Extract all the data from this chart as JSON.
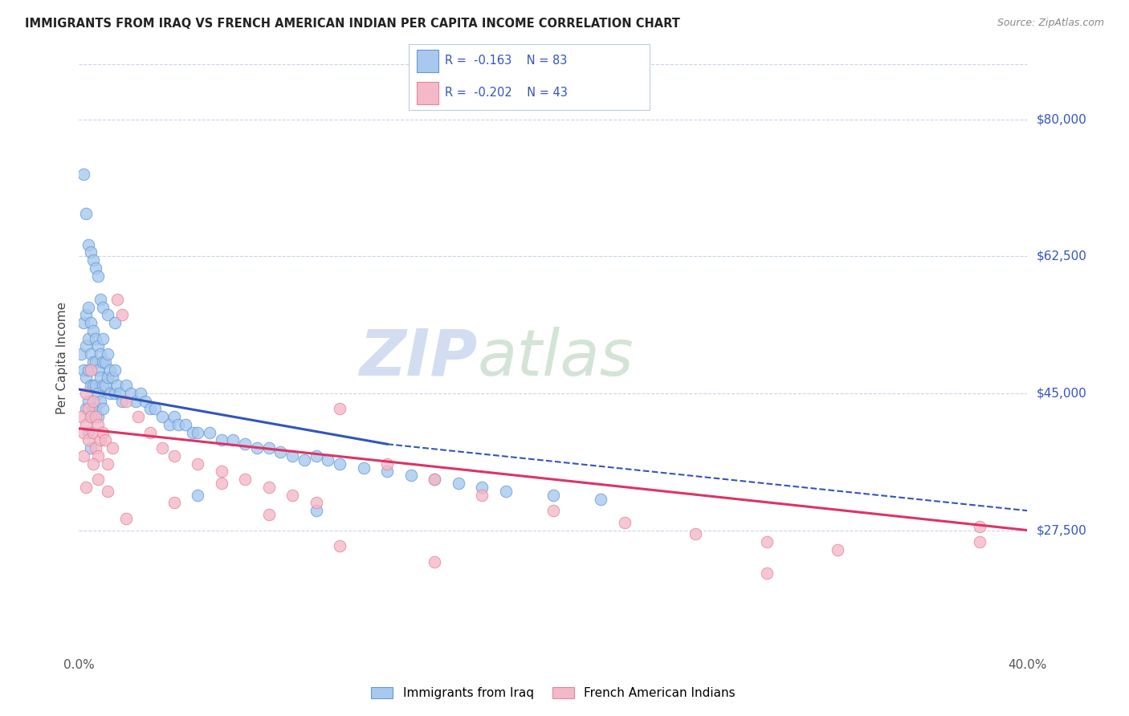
{
  "title": "IMMIGRANTS FROM IRAQ VS FRENCH AMERICAN INDIAN PER CAPITA INCOME CORRELATION CHART",
  "source": "Source: ZipAtlas.com",
  "ylabel": "Per Capita Income",
  "yticks": [
    27500,
    45000,
    62500,
    80000
  ],
  "ytick_labels": [
    "$27,500",
    "$45,000",
    "$62,500",
    "$80,000"
  ],
  "xlim": [
    0.0,
    0.4
  ],
  "ylim": [
    12000,
    87000
  ],
  "watermark": "ZIPatlas",
  "legend_bottom": [
    "Immigrants from Iraq",
    "French American Indians"
  ],
  "blue_scatter_x": [
    0.001,
    0.002,
    0.002,
    0.003,
    0.003,
    0.003,
    0.003,
    0.004,
    0.004,
    0.004,
    0.004,
    0.004,
    0.005,
    0.005,
    0.005,
    0.005,
    0.005,
    0.006,
    0.006,
    0.006,
    0.006,
    0.007,
    0.007,
    0.007,
    0.007,
    0.008,
    0.008,
    0.008,
    0.008,
    0.009,
    0.009,
    0.009,
    0.01,
    0.01,
    0.01,
    0.01,
    0.011,
    0.011,
    0.012,
    0.012,
    0.013,
    0.013,
    0.014,
    0.015,
    0.015,
    0.016,
    0.017,
    0.018,
    0.02,
    0.022,
    0.024,
    0.026,
    0.028,
    0.03,
    0.032,
    0.035,
    0.038,
    0.04,
    0.042,
    0.045,
    0.048,
    0.05,
    0.055,
    0.06,
    0.065,
    0.07,
    0.075,
    0.08,
    0.085,
    0.09,
    0.095,
    0.1,
    0.105,
    0.11,
    0.12,
    0.13,
    0.14,
    0.15,
    0.16,
    0.17,
    0.18,
    0.2,
    0.22
  ],
  "blue_scatter_y": [
    50000,
    54000,
    48000,
    55000,
    51000,
    47000,
    43000,
    56000,
    52000,
    48000,
    44000,
    40000,
    54000,
    50000,
    46000,
    42000,
    38000,
    53000,
    49000,
    46000,
    43000,
    52000,
    49000,
    46000,
    43000,
    51000,
    48000,
    45000,
    42000,
    50000,
    47000,
    44000,
    52000,
    49000,
    46000,
    43000,
    49000,
    46000,
    50000,
    47000,
    48000,
    45000,
    47000,
    48000,
    45000,
    46000,
    45000,
    44000,
    46000,
    45000,
    44000,
    45000,
    44000,
    43000,
    43000,
    42000,
    41000,
    42000,
    41000,
    41000,
    40000,
    40000,
    40000,
    39000,
    39000,
    38500,
    38000,
    38000,
    37500,
    37000,
    36500,
    37000,
    36500,
    36000,
    35500,
    35000,
    34500,
    34000,
    33500,
    33000,
    32500,
    32000,
    31500
  ],
  "blue_scatter_special": [
    0.002,
    0.003,
    0.004,
    0.005,
    0.006,
    0.007,
    0.008,
    0.009,
    0.01,
    0.012,
    0.015,
    0.05,
    0.1
  ],
  "blue_scatter_special_y": [
    73000,
    68000,
    64000,
    63000,
    62000,
    61000,
    60000,
    57000,
    56000,
    55000,
    54000,
    32000,
    30000
  ],
  "pink_scatter_x": [
    0.001,
    0.002,
    0.002,
    0.003,
    0.003,
    0.004,
    0.004,
    0.005,
    0.005,
    0.006,
    0.006,
    0.007,
    0.007,
    0.008,
    0.008,
    0.009,
    0.01,
    0.011,
    0.012,
    0.014,
    0.016,
    0.018,
    0.02,
    0.025,
    0.03,
    0.035,
    0.04,
    0.05,
    0.06,
    0.07,
    0.08,
    0.09,
    0.1,
    0.11,
    0.13,
    0.15,
    0.17,
    0.2,
    0.23,
    0.26,
    0.29,
    0.32,
    0.38
  ],
  "pink_scatter_y": [
    42000,
    40000,
    37000,
    45000,
    41000,
    43000,
    39000,
    48000,
    42000,
    44000,
    40000,
    42000,
    38000,
    41000,
    37000,
    39000,
    40000,
    39000,
    36000,
    38000,
    57000,
    55000,
    44000,
    42000,
    40000,
    38000,
    37000,
    36000,
    35000,
    34000,
    33000,
    32000,
    31000,
    43000,
    36000,
    34000,
    32000,
    30000,
    28500,
    27000,
    26000,
    25000,
    26000
  ],
  "pink_scatter_extra": [
    0.003,
    0.006,
    0.008,
    0.012,
    0.02,
    0.04,
    0.06,
    0.08,
    0.11,
    0.15,
    0.29,
    0.38
  ],
  "pink_scatter_extra_y": [
    33000,
    36000,
    34000,
    32500,
    29000,
    31000,
    33500,
    29500,
    25500,
    23500,
    22000,
    28000
  ],
  "blue_line_x0": 0.0,
  "blue_line_x1": 0.13,
  "blue_line_x2": 0.4,
  "blue_line_y0": 45500,
  "blue_line_y1": 38500,
  "blue_line_y2": 30000,
  "pink_line_x0": 0.0,
  "pink_line_x1": 0.4,
  "pink_line_y0": 40500,
  "pink_line_y1": 27500,
  "blue_scatter_color": "#a8c8f0",
  "blue_scatter_edge": "#6699cc",
  "pink_scatter_color": "#f5b8c8",
  "pink_scatter_edge": "#dd8899",
  "blue_line_color": "#3355bb",
  "pink_line_color": "#dd3366",
  "grid_color": "#c8d4e8",
  "watermark_color": "#d0dff5",
  "bg_color": "#ffffff",
  "text_color_blue": "#3355bb",
  "text_color_dark": "#222222",
  "text_color_source": "#888888"
}
